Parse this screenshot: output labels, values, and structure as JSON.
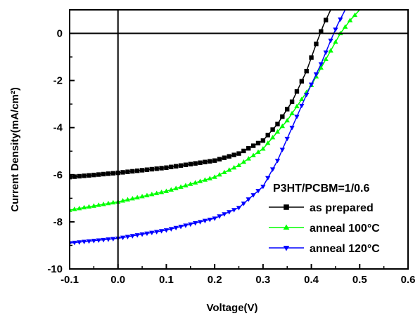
{
  "chart_data": {
    "type": "line",
    "xlabel": "Voltage(V)",
    "ylabel": "Current Density(mA/cm²)",
    "xlim": [
      -0.1,
      0.6
    ],
    "ylim": [
      -10,
      1
    ],
    "xticks": [
      -0.1,
      0.0,
      0.1,
      0.2,
      0.3,
      0.4,
      0.5,
      0.6
    ],
    "xtick_labels": [
      "-0.1",
      "0.0",
      "0.1",
      "0.2",
      "0.3",
      "0.4",
      "0.5",
      "0.6"
    ],
    "yticks": [
      -10,
      -8,
      -6,
      -4,
      -2,
      0
    ],
    "ytick_labels": [
      "-10",
      "-8",
      "-6",
      "-4",
      "-2",
      "0"
    ],
    "grid": false,
    "reference_lines": {
      "x": 0,
      "y": 0
    },
    "legend_title": "P3HT/PCBM=1/0.6",
    "legend_position": "lower-right",
    "series": [
      {
        "name": "as prepared",
        "color": "#000000",
        "marker": "square",
        "points": [
          [
            -0.1,
            -6.1
          ],
          [
            0.0,
            -5.92
          ],
          [
            0.1,
            -5.7
          ],
          [
            0.2,
            -5.4
          ],
          [
            0.25,
            -5.1
          ],
          [
            0.3,
            -4.55
          ],
          [
            0.33,
            -3.85
          ],
          [
            0.36,
            -2.9
          ],
          [
            0.39,
            -1.6
          ],
          [
            0.41,
            -0.45
          ],
          [
            0.425,
            0.35
          ],
          [
            0.44,
            1.0
          ]
        ]
      },
      {
        "name": "anneal 100°C",
        "color": "#00ff00",
        "marker": "triangle-up",
        "points": [
          [
            -0.1,
            -7.5
          ],
          [
            0.0,
            -7.15
          ],
          [
            0.1,
            -6.7
          ],
          [
            0.2,
            -6.1
          ],
          [
            0.25,
            -5.6
          ],
          [
            0.3,
            -4.9
          ],
          [
            0.35,
            -3.7
          ],
          [
            0.4,
            -2.2
          ],
          [
            0.43,
            -1.1
          ],
          [
            0.46,
            0.0
          ],
          [
            0.48,
            0.55
          ],
          [
            0.5,
            1.0
          ]
        ]
      },
      {
        "name": "anneal 120°C",
        "color": "#0000ff",
        "marker": "triangle-down",
        "points": [
          [
            -0.1,
            -8.9
          ],
          [
            0.0,
            -8.7
          ],
          [
            0.1,
            -8.35
          ],
          [
            0.2,
            -7.85
          ],
          [
            0.25,
            -7.4
          ],
          [
            0.3,
            -6.5
          ],
          [
            0.33,
            -5.4
          ],
          [
            0.36,
            -4.0
          ],
          [
            0.39,
            -2.6
          ],
          [
            0.42,
            -1.3
          ],
          [
            0.44,
            -0.3
          ],
          [
            0.455,
            0.4
          ],
          [
            0.47,
            1.0
          ]
        ]
      }
    ]
  }
}
